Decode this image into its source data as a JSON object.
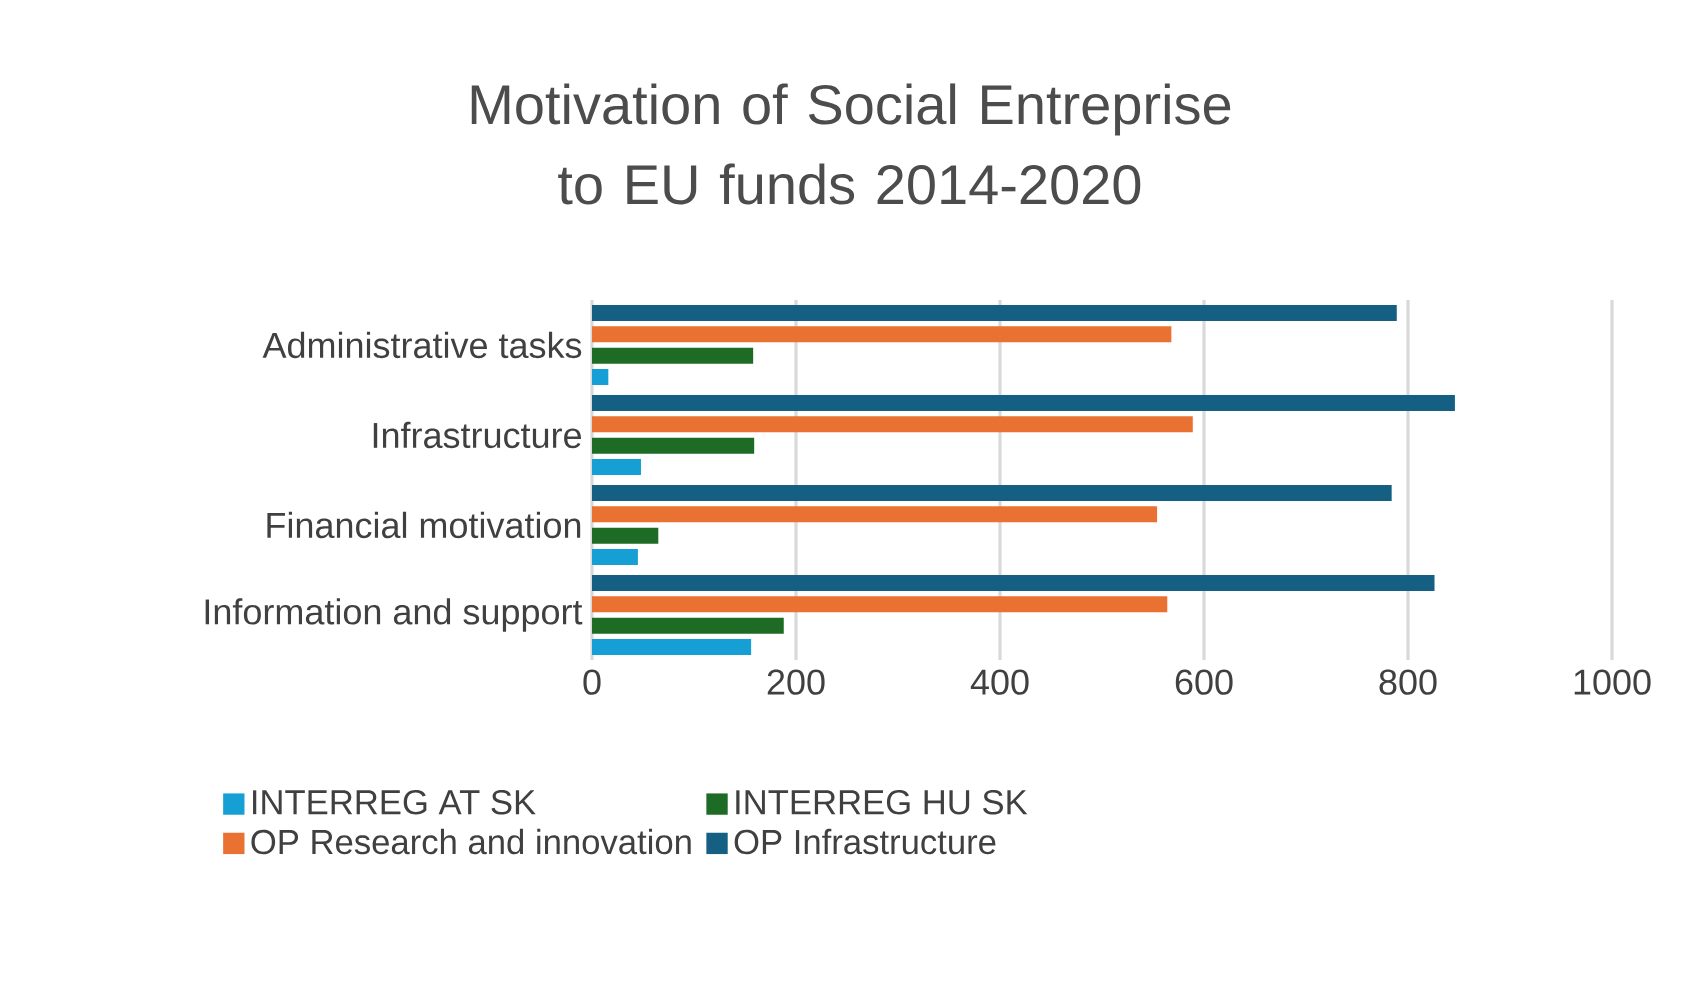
{
  "chart_data": {
    "type": "bar",
    "orientation": "horizontal",
    "title": "Motivation of Social Entreprise to EU funds  2014-2020",
    "categories": [
      "Administrative tasks",
      "Infrastructure",
      "Financial motivation",
      "Information and support"
    ],
    "series": [
      {
        "name": "INTERREG AT SK",
        "color": "#159fd5",
        "values": [
          16,
          48,
          45,
          156
        ]
      },
      {
        "name": "INTERREG HU SK",
        "color": "#1e6b25",
        "values": [
          158,
          159,
          65,
          188
        ]
      },
      {
        "name": "OP Research and innovation",
        "color": "#e97132",
        "values": [
          568,
          589,
          554,
          564
        ]
      },
      {
        "name": "OP Infrastructure",
        "color": "#156082",
        "values": [
          789,
          846,
          784,
          826
        ]
      }
    ],
    "xlim": [
      0,
      1000
    ],
    "xticks": [
      0,
      200,
      400,
      600,
      800,
      1000
    ],
    "grid": "x",
    "legend": "bottom"
  }
}
